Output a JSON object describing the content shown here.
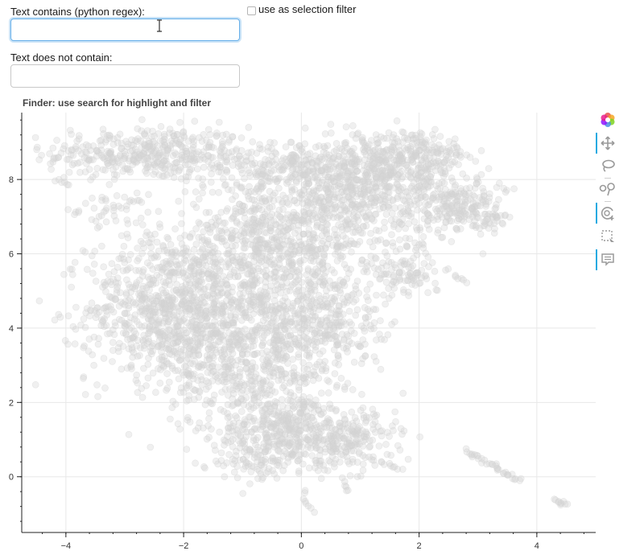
{
  "form": {
    "contains_label": "Text contains (python regex):",
    "contains_value": "",
    "not_contains_label": "Text does not contain:",
    "not_contains_value": "",
    "selection_filter_label": "use as selection filter",
    "selection_filter_checked": false
  },
  "plot": {
    "title": "Finder: use search for highlight and filter",
    "toolbar": [
      {
        "name": "bokeh-logo-icon",
        "active": false
      },
      {
        "name": "pan-icon",
        "active": true
      },
      {
        "name": "lasso-select-icon",
        "active": false
      },
      {
        "name": "poly-select-icon",
        "active": false
      },
      {
        "name": "wheel-zoom-icon",
        "active": true
      },
      {
        "name": "box-select-icon",
        "active": false
      },
      {
        "name": "hover-icon",
        "active": true
      }
    ]
  },
  "chart_data": {
    "type": "scatter",
    "title": "Finder: use search for highlight and filter",
    "xlabel": "",
    "ylabel": "",
    "xlim": [
      -4.75,
      5.0
    ],
    "ylim": [
      -1.5,
      9.8
    ],
    "x_ticks": [
      -4,
      -2,
      0,
      2,
      4
    ],
    "y_ticks": [
      0,
      2,
      4,
      6,
      8
    ],
    "x_tick_labels": [
      "−4",
      "−2",
      "0",
      "2",
      "4"
    ],
    "y_tick_labels": [
      "0",
      "2",
      "4",
      "6",
      "8"
    ],
    "grid": true,
    "point_color": "#d3d3d3",
    "point_alpha": 0.35,
    "regions": [
      {
        "cx": -2.6,
        "cy": 8.7,
        "sx": 1.1,
        "sy": 0.45,
        "n": 420
      },
      {
        "cx": -3.2,
        "cy": 7.2,
        "sx": 0.35,
        "sy": 0.25,
        "n": 40
      },
      {
        "cx": -2.2,
        "cy": 4.5,
        "sx": 0.9,
        "sy": 1.2,
        "n": 900
      },
      {
        "cx": -0.8,
        "cy": 3.2,
        "sx": 0.9,
        "sy": 1.4,
        "n": 700
      },
      {
        "cx": -0.3,
        "cy": 1.2,
        "sx": 0.7,
        "sy": 0.6,
        "n": 350
      },
      {
        "cx": 0.8,
        "cy": 1.0,
        "sx": 0.5,
        "sy": 0.5,
        "n": 200
      },
      {
        "cx": -0.6,
        "cy": 6.2,
        "sx": 1.0,
        "sy": 1.0,
        "n": 700
      },
      {
        "cx": 1.0,
        "cy": 7.5,
        "sx": 1.0,
        "sy": 0.9,
        "n": 650
      },
      {
        "cx": 1.9,
        "cy": 8.6,
        "sx": 0.6,
        "sy": 0.45,
        "n": 250
      },
      {
        "cx": 0.2,
        "cy": 8.4,
        "sx": 1.2,
        "sy": 0.4,
        "n": 300
      },
      {
        "cx": 2.7,
        "cy": 7.3,
        "sx": 0.45,
        "sy": 0.45,
        "n": 180
      },
      {
        "cx": 0.3,
        "cy": 4.3,
        "sx": 0.7,
        "sy": 1.0,
        "n": 350
      },
      {
        "cx": 1.8,
        "cy": 5.5,
        "sx": 0.35,
        "sy": 0.4,
        "n": 90
      },
      {
        "cx": -0.8,
        "cy": 0.4,
        "sx": 0.35,
        "sy": 0.3,
        "n": 60
      },
      {
        "cx": 3.2,
        "cy": 6.9,
        "sx": 0.15,
        "sy": 0.15,
        "n": 25
      }
    ],
    "streaks": [
      {
        "x0": 2.8,
        "y0": 0.7,
        "x1": 3.7,
        "y1": -0.1,
        "n": 35
      },
      {
        "x0": 4.3,
        "y0": -0.6,
        "x1": 4.5,
        "y1": -0.75,
        "n": 10
      },
      {
        "x0": 0.05,
        "y0": -0.4,
        "x1": 0.15,
        "y1": -0.95,
        "n": 8
      },
      {
        "x0": 0.7,
        "y0": -0.2,
        "x1": 0.8,
        "y1": -0.4,
        "n": 5
      },
      {
        "x0": 1.2,
        "y0": 0.5,
        "x1": 1.7,
        "y1": 0.2,
        "n": 10
      },
      {
        "x0": 2.6,
        "y0": 5.4,
        "x1": 2.8,
        "y1": 5.2,
        "n": 6
      },
      {
        "x0": -4.2,
        "y0": 8.0,
        "x1": -4.0,
        "y1": 7.9,
        "n": 5
      }
    ]
  }
}
